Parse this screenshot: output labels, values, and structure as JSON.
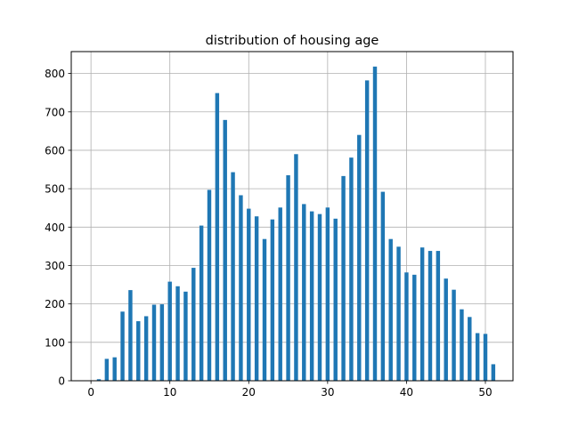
{
  "chart_data": {
    "type": "bar",
    "title": "distribution of housing age",
    "xlabel": "",
    "ylabel": "",
    "xlim": [
      -2.5,
      53.5
    ],
    "ylim": [
      0,
      857
    ],
    "xticks": [
      0,
      10,
      20,
      30,
      40,
      50
    ],
    "yticks": [
      0,
      100,
      200,
      300,
      400,
      500,
      600,
      700,
      800
    ],
    "grid": true,
    "bar_color": "#1f77b4",
    "bin_width": 0.5,
    "x": [
      1,
      2,
      3,
      4,
      5,
      6,
      7,
      8,
      9,
      10,
      11,
      12,
      13,
      14,
      15,
      16,
      17,
      18,
      19,
      20,
      21,
      22,
      23,
      24,
      25,
      26,
      27,
      28,
      29,
      30,
      31,
      32,
      33,
      34,
      35,
      36,
      37,
      38,
      39,
      40,
      41,
      42,
      43,
      44,
      45,
      46,
      47,
      48,
      49,
      50,
      51
    ],
    "values": [
      4,
      57,
      61,
      180,
      236,
      155,
      168,
      198,
      199,
      258,
      246,
      232,
      294,
      404,
      497,
      749,
      679,
      543,
      483,
      448,
      428,
      369,
      420,
      451,
      535,
      590,
      460,
      441,
      434,
      451,
      422,
      533,
      581,
      640,
      782,
      818,
      492,
      369,
      349,
      282,
      276,
      347,
      338,
      338,
      266,
      237,
      186,
      166,
      124,
      122,
      43
    ]
  }
}
